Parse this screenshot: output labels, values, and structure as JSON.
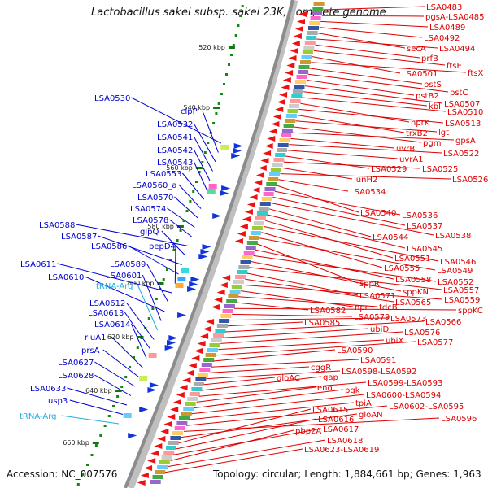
{
  "title": "Lactobacillus sakei subsp. sakei 23K, complete genome",
  "footer": {
    "accession": "Accession: NC_007576",
    "topology": "Topology: circular; Length: 1,884,661 bp; Genes: 1,963"
  },
  "ticks": [
    "520 kbp",
    "540 kbp",
    "560 kbp",
    "580 kbp",
    "600 kbp",
    "620 kbp",
    "640 kbp",
    "660 kbp"
  ],
  "colors": {
    "forward_label": "#0000cc",
    "reverse_label": "#dd0000",
    "trna_label": "#22aadd",
    "backbone": "#8c8c8c",
    "tick_dot": "#118811"
  },
  "left_labels": [
    {
      "t": "LSA0530",
      "c": "blue"
    },
    {
      "t": "clpP",
      "c": "blue"
    },
    {
      "t": "LSA0532",
      "c": "blue"
    },
    {
      "t": "LSA0541",
      "c": "blue"
    },
    {
      "t": "LSA0542",
      "c": "blue"
    },
    {
      "t": "LSA0543",
      "c": "blue"
    },
    {
      "t": "LSA0553",
      "c": "blue"
    },
    {
      "t": "LSA0560_a",
      "c": "blue"
    },
    {
      "t": "LSA0570",
      "c": "blue"
    },
    {
      "t": "LSA0574",
      "c": "blue"
    },
    {
      "t": "LSA0578",
      "c": "blue"
    },
    {
      "t": "LSA0588",
      "c": "blue"
    },
    {
      "t": "glpQ",
      "c": "blue"
    },
    {
      "t": "LSA0587",
      "c": "blue"
    },
    {
      "t": "LSA0586",
      "c": "blue"
    },
    {
      "t": "pepD4",
      "c": "blue"
    },
    {
      "t": "LSA0611",
      "c": "blue"
    },
    {
      "t": "LSA0589",
      "c": "blue"
    },
    {
      "t": "LSA0610",
      "c": "blue"
    },
    {
      "t": "LSA0601",
      "c": "blue"
    },
    {
      "t": "tRNA-Arg",
      "c": "cyan"
    },
    {
      "t": "LSA0612",
      "c": "blue"
    },
    {
      "t": "LSA0613",
      "c": "blue"
    },
    {
      "t": "LSA0614",
      "c": "blue"
    },
    {
      "t": "rluA1",
      "c": "blue"
    },
    {
      "t": "prsA",
      "c": "blue"
    },
    {
      "t": "LSA0627",
      "c": "blue"
    },
    {
      "t": "LSA0628",
      "c": "blue"
    },
    {
      "t": "LSA0633",
      "c": "blue"
    },
    {
      "t": "usp3",
      "c": "blue"
    },
    {
      "t": "tRNA-Arg",
      "c": "cyan"
    }
  ],
  "right_labels": [
    "LSA0483",
    "pgsA-LSA0485",
    "LSA0489",
    "LSA0492",
    "secA",
    "LSA0494",
    "prfB",
    "ftsE",
    "LSA0501",
    "ftsX",
    "pstS",
    "pstC",
    "pstB2",
    "LSA0507",
    "kbl",
    "LSA0510",
    "hprK",
    "LSA0513",
    "trxB2",
    "lgt",
    "pgm",
    "gpsA",
    "uvrB",
    "LSA0522",
    "uvrA1",
    "LSA0529",
    "LSA0525",
    "iunH2",
    "LSA0526",
    "LSA0534",
    "LSA0540",
    "LSA0536",
    "LSA0537",
    "LSA0538",
    "LSA0544",
    "LSA0545",
    "LSA0551",
    "LSA0546",
    "LSA0555",
    "LSA0549",
    "sppR",
    "LSA0558",
    "LSA0552",
    "sppKN",
    "LSA0557",
    "LSA0571",
    "LSA0565",
    "LSA0559",
    "npr",
    "tdcB",
    "LSA0582",
    "sppKC",
    "LSA0579",
    "LSA0573",
    "LSA0585",
    "LSA0566",
    "ubiD",
    "LSA0576",
    "ubiX",
    "LSA0577",
    "LSA0590",
    "LSA0591",
    "cggR",
    "LSA0598-LSA0592",
    "gloAC",
    "gap",
    "LSA0599-LSA0593",
    "eno",
    "pgk",
    "LSA0600-LSA0594",
    "tpiA",
    "LSA0602-LSA0595",
    "LSA0596",
    "gloAN",
    "LSA0615",
    "LSA0616",
    "LSA0617",
    "pbp2A",
    "LSA0618",
    "LSA0623-LSA0619"
  ]
}
